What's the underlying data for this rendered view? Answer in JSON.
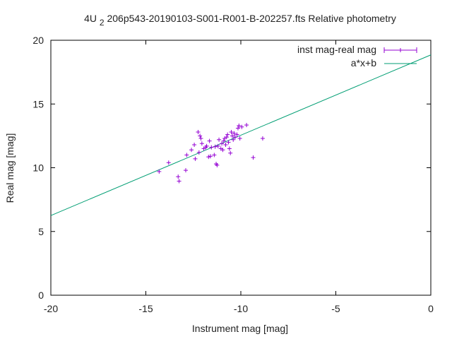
{
  "chart_data": {
    "type": "scatter",
    "title": "4U 2206p543-20190103-S001-R001-B-202257.fts Relative photometry",
    "title_main": "206p543-20190103-S001-R001-B-202257.fts Relative photometry",
    "title_prefix": "4U",
    "title_subscript": "2",
    "xlabel": "Instrument mag [mag]",
    "ylabel": "Real mag [mag]",
    "xlim": [
      -20,
      0
    ],
    "ylim": [
      0,
      20
    ],
    "x_ticks": [
      -20,
      -15,
      -10,
      -5,
      0
    ],
    "x_tick_labels": [
      "-20",
      "-15",
      "-10",
      "-5",
      "0"
    ],
    "y_ticks": [
      0,
      5,
      10,
      15,
      20
    ],
    "y_tick_labels": [
      "0",
      "5",
      "10",
      "15",
      "20"
    ],
    "grid": false,
    "legend_position": "top-right",
    "series": [
      {
        "name": "inst mag-real mag",
        "kind": "points",
        "color": "#9400d3",
        "points": [
          [
            -14.3,
            9.7
          ],
          [
            -13.8,
            10.4
          ],
          [
            -13.3,
            9.3
          ],
          [
            -13.25,
            8.95
          ],
          [
            -12.9,
            9.8
          ],
          [
            -12.85,
            11.0
          ],
          [
            -12.6,
            11.4
          ],
          [
            -12.45,
            11.8
          ],
          [
            -12.4,
            10.7
          ],
          [
            -12.25,
            12.8
          ],
          [
            -12.2,
            11.2
          ],
          [
            -12.15,
            12.5
          ],
          [
            -12.1,
            12.3
          ],
          [
            -12.05,
            11.9
          ],
          [
            -11.95,
            11.5
          ],
          [
            -11.85,
            11.6
          ],
          [
            -11.8,
            11.7
          ],
          [
            -11.7,
            10.85
          ],
          [
            -11.65,
            12.1
          ],
          [
            -11.6,
            10.9
          ],
          [
            -11.55,
            11.6
          ],
          [
            -11.4,
            11.0
          ],
          [
            -11.35,
            11.65
          ],
          [
            -11.3,
            10.3
          ],
          [
            -11.25,
            10.2
          ],
          [
            -11.2,
            11.7
          ],
          [
            -11.15,
            12.2
          ],
          [
            -11.05,
            11.5
          ],
          [
            -11.0,
            11.9
          ],
          [
            -10.95,
            11.4
          ],
          [
            -10.9,
            12.1
          ],
          [
            -10.85,
            12.3
          ],
          [
            -10.8,
            11.8
          ],
          [
            -10.75,
            12.4
          ],
          [
            -10.7,
            12.6
          ],
          [
            -10.65,
            12.0
          ],
          [
            -10.6,
            11.5
          ],
          [
            -10.55,
            11.15
          ],
          [
            -10.5,
            12.8
          ],
          [
            -10.45,
            12.5
          ],
          [
            -10.4,
            12.2
          ],
          [
            -10.35,
            12.7
          ],
          [
            -10.3,
            12.4
          ],
          [
            -10.2,
            12.6
          ],
          [
            -10.15,
            13.1
          ],
          [
            -10.1,
            13.3
          ],
          [
            -10.05,
            12.3
          ],
          [
            -9.95,
            13.2
          ],
          [
            -9.7,
            13.35
          ],
          [
            -9.35,
            10.8
          ],
          [
            -8.85,
            12.3
          ]
        ]
      },
      {
        "name": "a*x+b",
        "kind": "line",
        "color": "#009e73",
        "slope": 0.63,
        "intercept": 18.85
      }
    ]
  }
}
